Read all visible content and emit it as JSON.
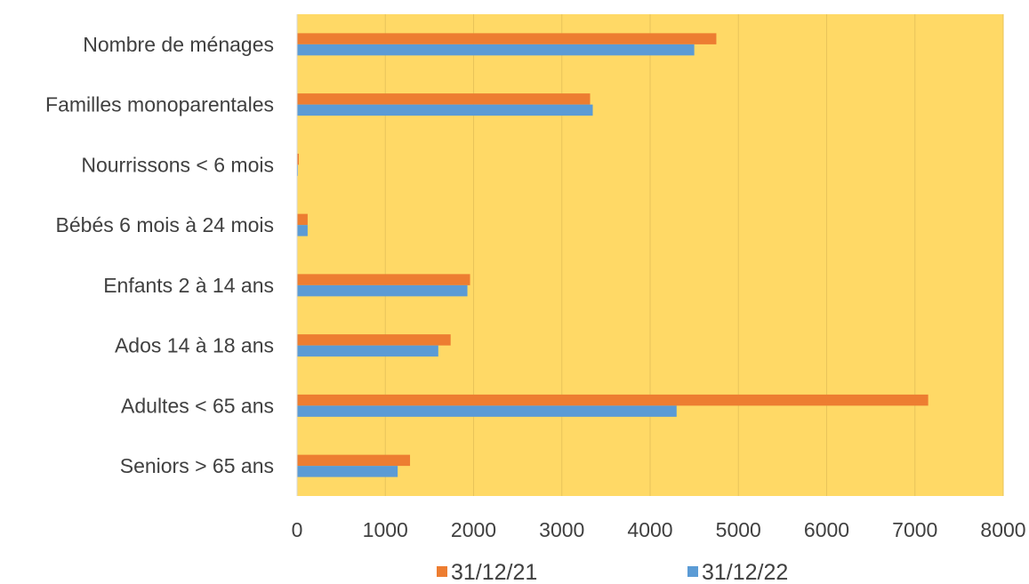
{
  "chart_data": {
    "type": "bar",
    "orientation": "horizontal",
    "categories": [
      "Nombre de ménages",
      "Familles monoparentales",
      "Nourrissons < 6 mois",
      "Bébés 6 mois à 24 mois",
      "Enfants 2 à 14 ans",
      "Ados 14 à 18 ans",
      "Adultes < 65 ans",
      "Seniors > 65 ans"
    ],
    "series": [
      {
        "name": "31/12/21",
        "color": "#ED7D31",
        "values": [
          4750,
          3320,
          20,
          120,
          1960,
          1740,
          7150,
          1280
        ]
      },
      {
        "name": "31/12/22",
        "color": "#5B9BD5",
        "values": [
          4500,
          3350,
          10,
          120,
          1930,
          1600,
          4300,
          1140
        ]
      }
    ],
    "xlim": [
      0,
      8000
    ],
    "xticks": [
      0,
      1000,
      2000,
      3000,
      4000,
      5000,
      6000,
      7000,
      8000
    ],
    "plot_background": "#FFD966",
    "gridlines": true,
    "legend_position": "bottom",
    "title": "",
    "xlabel": "",
    "ylabel": ""
  }
}
